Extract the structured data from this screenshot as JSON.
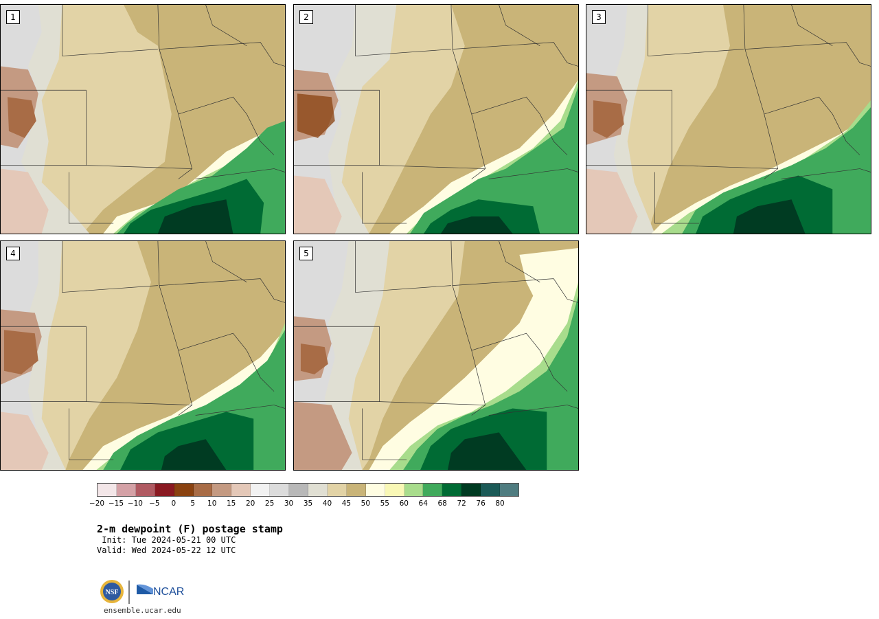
{
  "panels": [
    {
      "label": "1"
    },
    {
      "label": "2"
    },
    {
      "label": "3"
    },
    {
      "label": "4"
    },
    {
      "label": "5"
    }
  ],
  "colorbar": {
    "colors": [
      "#f3e6e8",
      "#d4a1a6",
      "#b05a62",
      "#8a1a22",
      "#8a4210",
      "#a86c46",
      "#c49a82",
      "#e4c8b8",
      "#f2f2f2",
      "#dcdcdc",
      "#b8b8b8",
      "#e0dfd3",
      "#e2d3a6",
      "#c9b478",
      "#fffde2",
      "#f9f8b6",
      "#a8dc8c",
      "#40aa5c",
      "#006b34",
      "#003b22",
      "#1b5a57",
      "#4f7c80"
    ],
    "ticks": [
      "−20",
      "−15",
      "−10",
      "−5",
      "0",
      "5",
      "10",
      "15",
      "20",
      "25",
      "30",
      "35",
      "40",
      "45",
      "50",
      "55",
      "60",
      "64",
      "68",
      "72",
      "76",
      "80"
    ]
  },
  "title": "2-m dewpoint (F) postage stamp",
  "init_text": " Init: Tue 2024-05-21 00 UTC",
  "valid_text": "Valid: Wed 2024-05-22 12 UTC",
  "site_url": "ensemble.ucar.edu",
  "logos": {
    "left": "NSF",
    "right": "NCAR"
  }
}
